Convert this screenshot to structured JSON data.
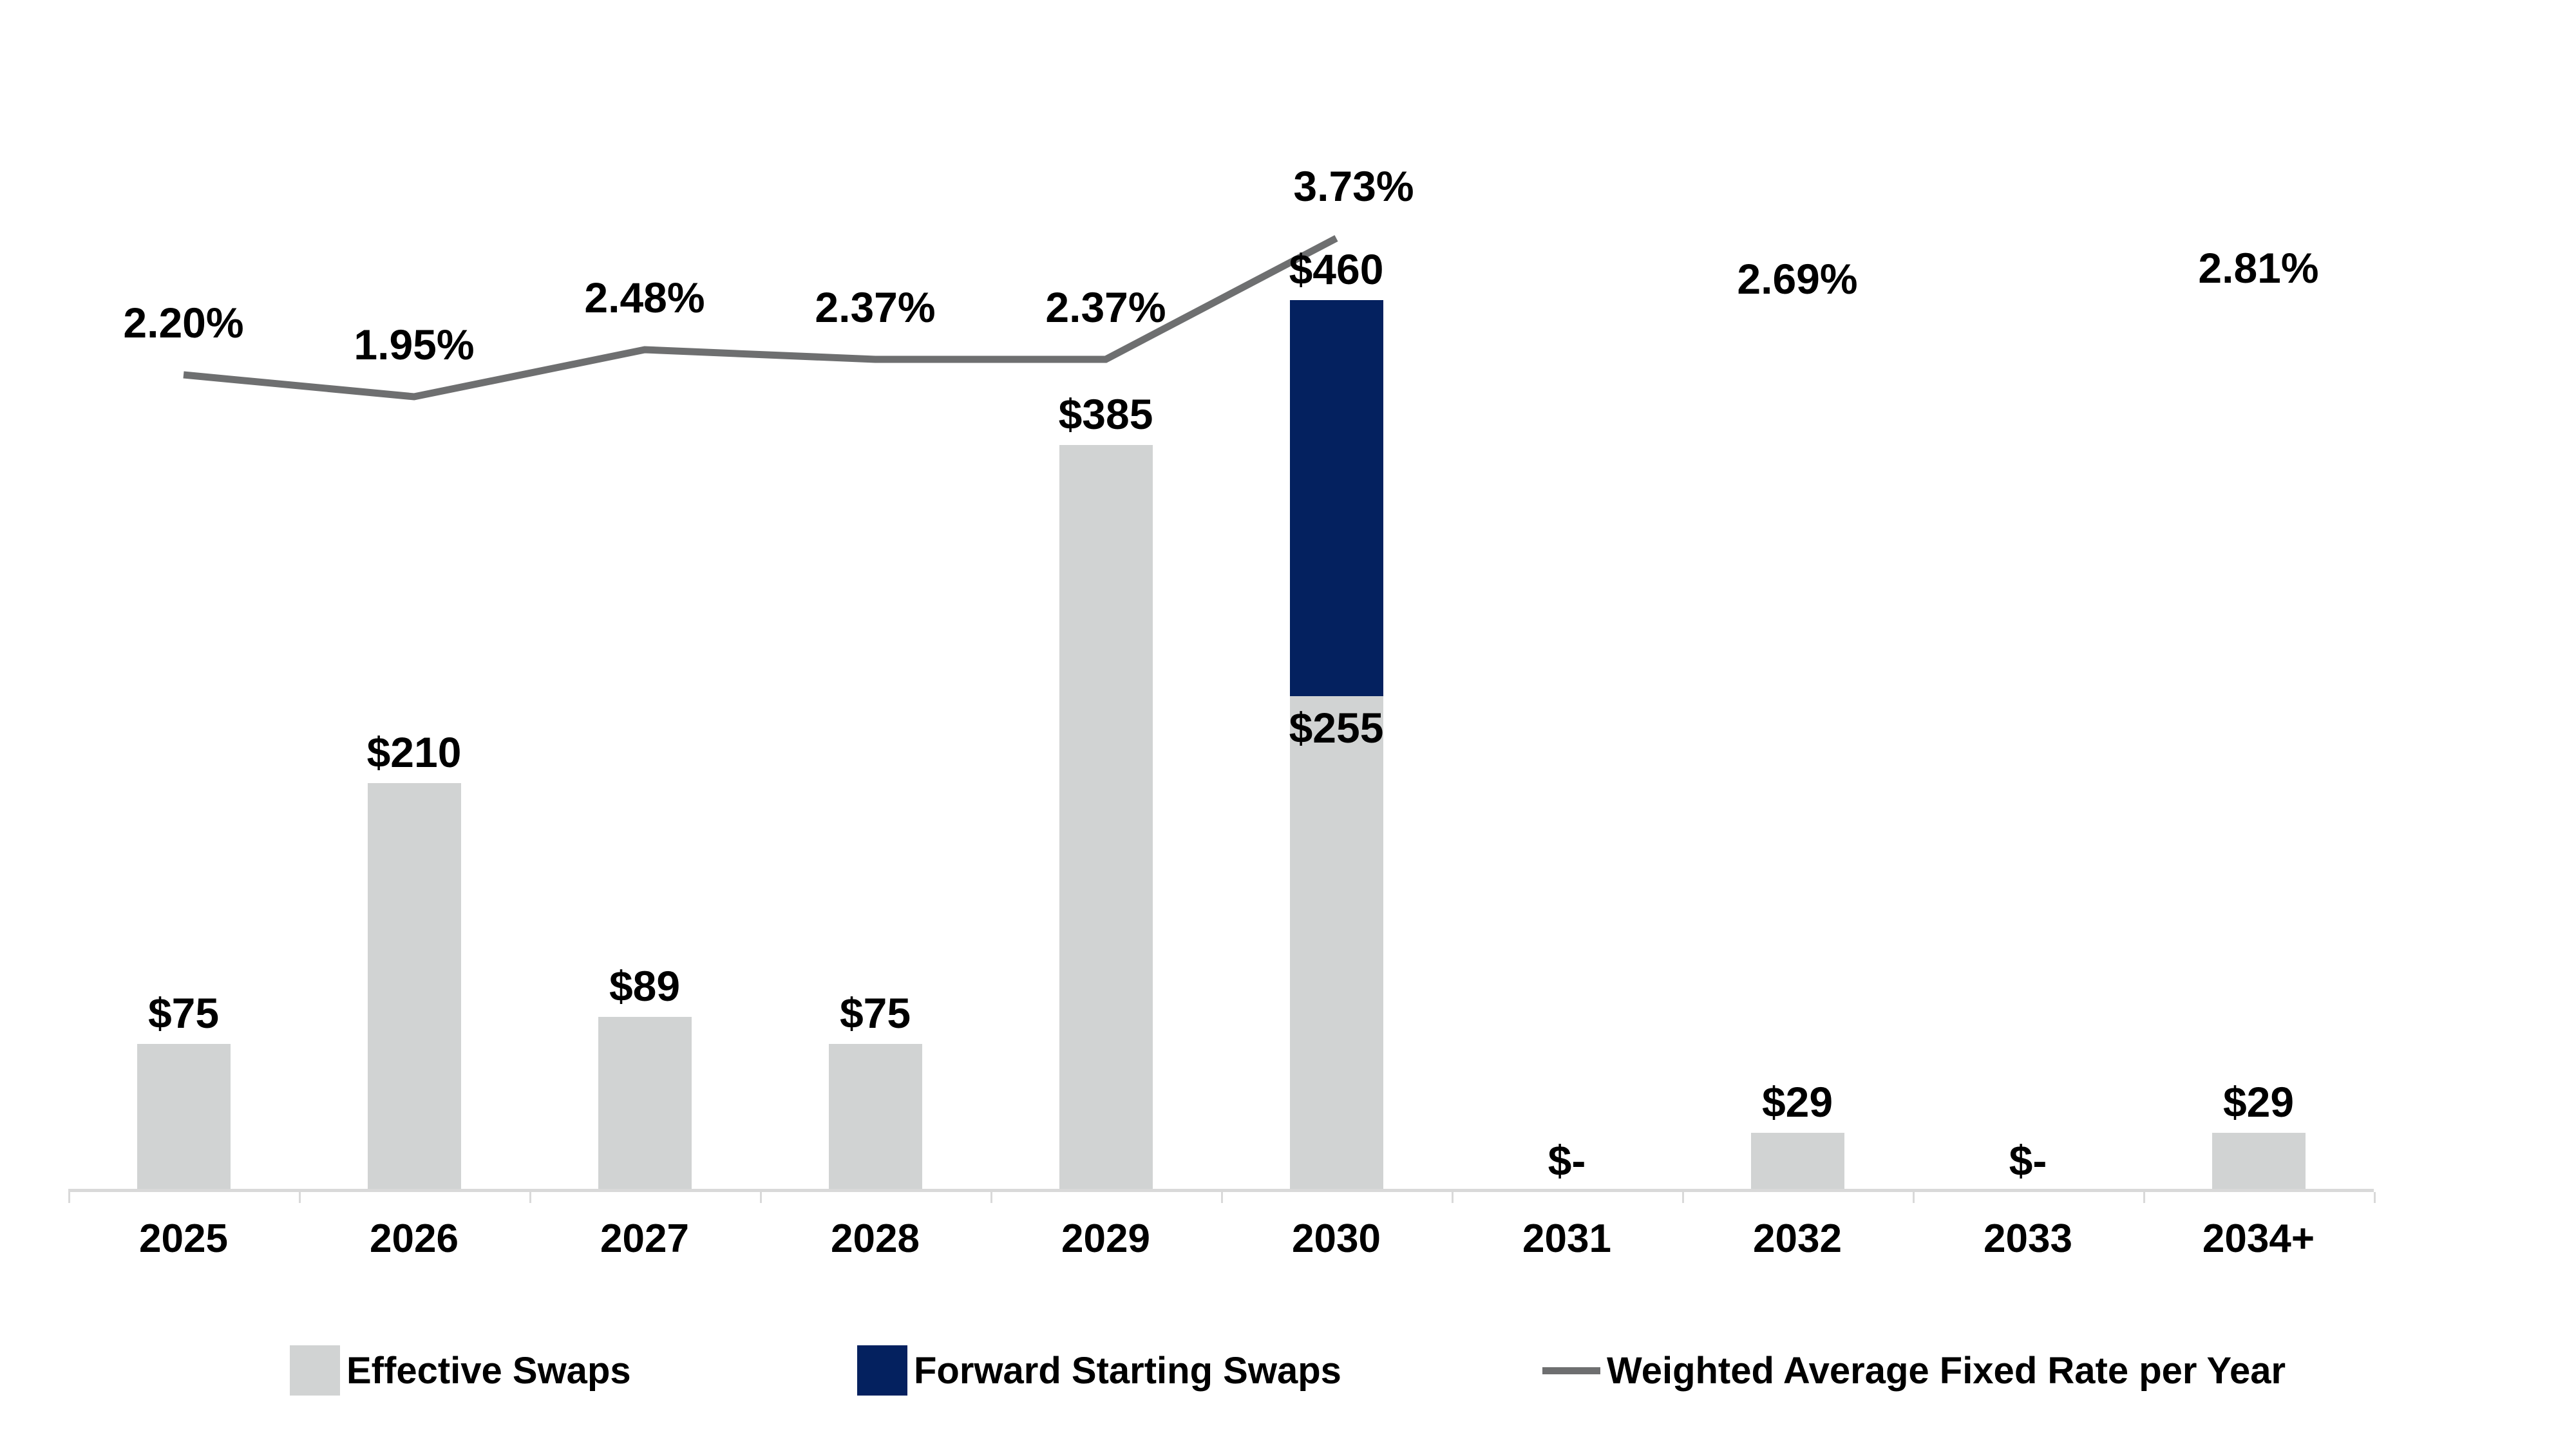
{
  "chart_data": {
    "type": "bar",
    "subtype": "stacked-column-with-line",
    "title": "",
    "xlabel": "",
    "ylabel": "",
    "grid": false,
    "legend_position": "bottom",
    "categories": [
      "2025",
      "2026",
      "2027",
      "2028",
      "2029",
      "2030",
      "2031",
      "2032",
      "2033",
      "2034+"
    ],
    "series": [
      {
        "name": "Effective Swaps",
        "type": "bar",
        "color": "#D1D3D3",
        "values": [
          75,
          210,
          89,
          75,
          385,
          255,
          0,
          29,
          0,
          29
        ],
        "labels": [
          "$75",
          "$210",
          "$89",
          "$75",
          "$385",
          "$255",
          "$-",
          "$29",
          "$-",
          "$29"
        ]
      },
      {
        "name": "Forward Starting Swaps",
        "type": "bar",
        "color": "#04215F",
        "values": [
          0,
          0,
          0,
          0,
          0,
          205,
          0,
          0,
          0,
          0
        ],
        "stack_total_labels": [
          null,
          null,
          null,
          null,
          null,
          "$460",
          null,
          null,
          null,
          null
        ],
        "note": "2030 column is a stack: $255 effective + forward starting on top, labeled with total $460"
      }
    ],
    "line": {
      "name": "Weighted Average Fixed Rate per Year",
      "type": "line",
      "color": "#6E6F70",
      "values": [
        2.2,
        1.95,
        2.48,
        2.37,
        2.37,
        3.73,
        null,
        2.69,
        null,
        2.81
      ],
      "labels": [
        "2.20%",
        "1.95%",
        "2.48%",
        "2.37%",
        "2.37%",
        "3.73%",
        null,
        "2.69%",
        null,
        "2.81%"
      ],
      "drawn_point_count": 6,
      "line_drawn_categories": [
        "2025",
        "2026",
        "2027",
        "2028",
        "2029",
        "2030"
      ]
    },
    "axis_colors": {
      "baseline": "#D9D9D9",
      "tick": "#D9D9D9"
    }
  }
}
